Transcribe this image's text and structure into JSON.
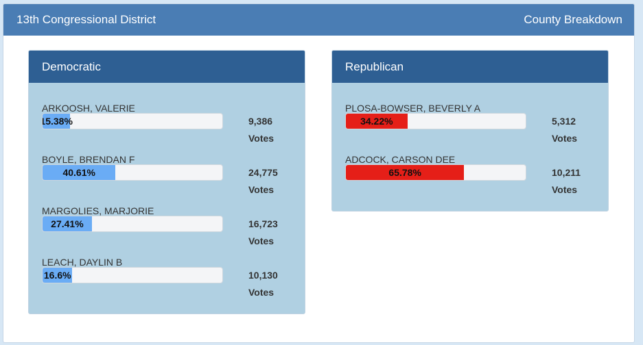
{
  "header": {
    "title": "13th Congressional District",
    "link": "County Breakdown"
  },
  "democratic": {
    "title": "Democratic",
    "color": "#6aacf5",
    "candidates": [
      {
        "name": "ARKOOSH, VALERIE",
        "percent": "15.38%",
        "pct_value": 15.38,
        "votes": "9,386",
        "votes_label": "Votes"
      },
      {
        "name": "BOYLE, BRENDAN F",
        "percent": "40.61%",
        "pct_value": 40.61,
        "votes": "24,775",
        "votes_label": "Votes"
      },
      {
        "name": "MARGOLIES, MARJORIE",
        "percent": "27.41%",
        "pct_value": 27.41,
        "votes": "16,723",
        "votes_label": "Votes"
      },
      {
        "name": "LEACH, DAYLIN B",
        "percent": "16.6%",
        "pct_value": 16.6,
        "votes": "10,130",
        "votes_label": "Votes"
      }
    ]
  },
  "republican": {
    "title": "Republican",
    "color": "#e51f18",
    "candidates": [
      {
        "name": "PLOSA-BOWSER, BEVERLY A",
        "percent": "34.22%",
        "pct_value": 34.22,
        "votes": "5,312",
        "votes_label": "Votes"
      },
      {
        "name": "ADCOCK, CARSON DEE",
        "percent": "65.78%",
        "pct_value": 65.78,
        "votes": "10,211",
        "votes_label": "Votes"
      }
    ]
  }
}
